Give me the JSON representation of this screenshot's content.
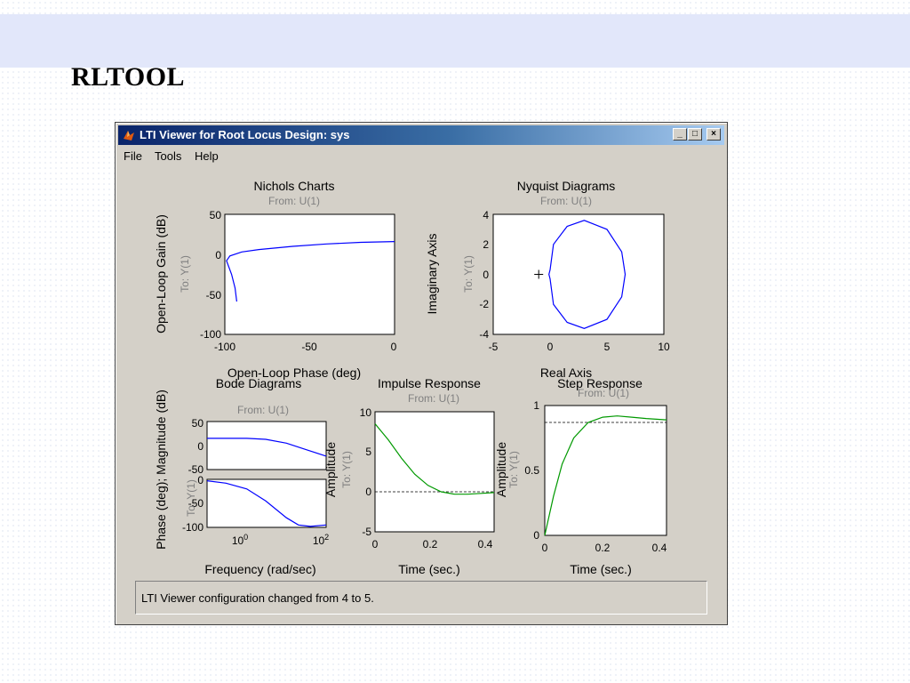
{
  "slide": {
    "title": "RLTOOL"
  },
  "window": {
    "title": "LTI Viewer for Root Locus Design: sys",
    "buttons": {
      "minimize": "_",
      "maximize": "□",
      "close": "×"
    }
  },
  "menu": {
    "items": [
      "File",
      "Tools",
      "Help"
    ]
  },
  "status": {
    "text": "LTI Viewer configuration changed from 4 to 5."
  },
  "colors": {
    "blue_curve": "#0000ff",
    "green_curve": "#009900",
    "titlebar": "#0a246a"
  },
  "plots": {
    "nichols": {
      "title": "Nichols Charts",
      "from": "From: U(1)",
      "to": "To: Y(1)",
      "xlabel": "Open-Loop Phase (deg)",
      "ylabel": "Open-Loop Gain (dB)",
      "xticks": [
        "-100",
        "-50",
        "0"
      ],
      "yticks": [
        "50",
        "0",
        "-50",
        "-100"
      ]
    },
    "nyquist": {
      "title": "Nyquist Diagrams",
      "from": "From: U(1)",
      "to": "To: Y(1)",
      "xlabel": "Real Axis",
      "ylabel": "Imaginary Axis",
      "xticks": [
        "-5",
        "0",
        "5",
        "10"
      ],
      "yticks": [
        "4",
        "2",
        "0",
        "-2",
        "-4"
      ]
    },
    "bode": {
      "title": "Bode Diagrams",
      "from": "From: U(1)",
      "to": "To: Y(1)",
      "xlabel": "Frequency (rad/sec)",
      "ylabel": "Phase (deg); Magnitude (dB)",
      "mag_ticks": [
        "50",
        "0",
        "-50"
      ],
      "phase_ticks": [
        "0",
        "-50",
        "-100"
      ],
      "xtick_base": "10",
      "xtick_exp": [
        "0",
        "2"
      ]
    },
    "impulse": {
      "title": "Impulse Response",
      "from": "From: U(1)",
      "to": "To: Y(1)",
      "xlabel": "Time (sec.)",
      "ylabel": "Amplitude",
      "xticks": [
        "0",
        "0.2",
        "0.4"
      ],
      "yticks": [
        "10",
        "5",
        "0",
        "-5"
      ]
    },
    "step": {
      "title": "Step Response",
      "from": "From: U(1)",
      "to": "To: Y(1)",
      "xlabel": "Time (sec.)",
      "ylabel": "Amplitude",
      "xticks": [
        "0",
        "0.2",
        "0.4"
      ],
      "yticks": [
        "1",
        "0.5",
        "0"
      ]
    }
  },
  "chart_data": [
    {
      "type": "line",
      "title": "Nichols Charts",
      "xlabel": "Open-Loop Phase (deg)",
      "ylabel": "Open-Loop Gain (dB)",
      "xlim": [
        -100,
        0
      ],
      "ylim": [
        -100,
        50
      ],
      "series": [
        {
          "x": [
            -93,
            -94,
            -96,
            -99,
            -97,
            -90,
            -80,
            -60,
            -40,
            -20,
            0
          ],
          "y": [
            -59,
            -42,
            -25,
            -8,
            -2,
            3,
            6,
            10,
            13,
            15,
            16
          ]
        }
      ]
    },
    {
      "type": "line",
      "title": "Nyquist Diagrams",
      "xlabel": "Real Axis",
      "ylabel": "Imaginary Axis",
      "xlim": [
        -5,
        10
      ],
      "ylim": [
        -4,
        4
      ],
      "series": [
        {
          "x": [
            0,
            0.3,
            1.5,
            3,
            5,
            6.3,
            6.6,
            6.3,
            5,
            3,
            1.5,
            0.3,
            0,
            -0.1,
            0
          ],
          "y": [
            -0.3,
            -2,
            -3.2,
            -3.6,
            -3,
            -1.5,
            0,
            1.5,
            3,
            3.6,
            3.2,
            2,
            0.3,
            0,
            -0.3
          ]
        }
      ],
      "marker": {
        "x": -1,
        "y": 0,
        "symbol": "+"
      }
    },
    {
      "type": "line",
      "title": "Bode Diagrams",
      "xlabel": "Frequency (rad/sec)",
      "ylabel": "Magnitude (dB)",
      "xscale": "log",
      "xlim": [
        0.1,
        100
      ],
      "ylim": [
        -50,
        50
      ],
      "series": [
        {
          "name": "Magnitude",
          "x": [
            0.1,
            0.3,
            1,
            3,
            10,
            30,
            100
          ],
          "y": [
            15,
            15,
            15,
            13,
            5,
            -8,
            -22
          ]
        }
      ]
    },
    {
      "type": "line",
      "title": "Bode Diagrams",
      "xlabel": "Frequency (rad/sec)",
      "ylabel": "Phase (deg)",
      "xscale": "log",
      "xlim": [
        0.1,
        100
      ],
      "ylim": [
        -100,
        0
      ],
      "series": [
        {
          "name": "Phase",
          "x": [
            0.1,
            0.3,
            1,
            3,
            10,
            20,
            40,
            100
          ],
          "y": [
            -3,
            -8,
            -20,
            -45,
            -80,
            -95,
            -98,
            -95
          ]
        }
      ]
    },
    {
      "type": "line",
      "title": "Impulse Response",
      "xlabel": "Time (sec.)",
      "ylabel": "Amplitude",
      "xlim": [
        0,
        0.45
      ],
      "ylim": [
        -5,
        10
      ],
      "series": [
        {
          "x": [
            0,
            0.05,
            0.1,
            0.15,
            0.2,
            0.25,
            0.3,
            0.35,
            0.4,
            0.45
          ],
          "y": [
            8.5,
            6.5,
            4.2,
            2.2,
            0.8,
            0,
            -0.3,
            -0.3,
            -0.2,
            -0.1
          ]
        }
      ]
    },
    {
      "type": "line",
      "title": "Step Response",
      "xlabel": "Time (sec.)",
      "ylabel": "Amplitude",
      "xlim": [
        0,
        0.42
      ],
      "ylim": [
        0,
        1
      ],
      "series": [
        {
          "x": [
            0,
            0.03,
            0.06,
            0.1,
            0.15,
            0.2,
            0.25,
            0.3,
            0.35,
            0.42
          ],
          "y": [
            0,
            0.3,
            0.55,
            0.75,
            0.87,
            0.91,
            0.92,
            0.91,
            0.9,
            0.89
          ]
        }
      ],
      "reference": 0.87
    }
  ]
}
